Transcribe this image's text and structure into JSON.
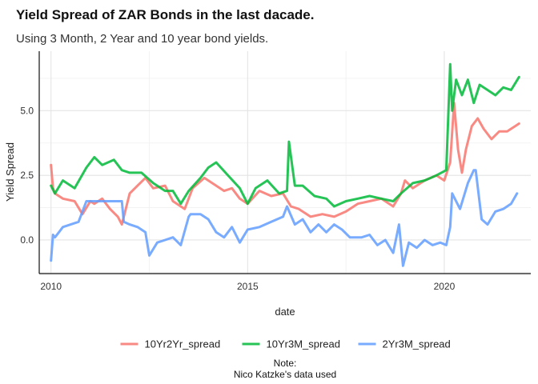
{
  "chart_data": {
    "type": "line",
    "title": "Yield Spread of ZAR Bonds in the last dacade.",
    "subtitle": "Using 3 Month, 2 Year and 10 year bond yields.",
    "xlabel": "date",
    "ylabel": "Yield Spread",
    "caption_line1": "Note:",
    "caption_line2": "Nico Katzke's data used",
    "xlim": [
      2009.7,
      2022.2
    ],
    "ylim": [
      -1.3,
      7.3
    ],
    "x_ticks": [
      2010,
      2015,
      2020
    ],
    "x_tick_labels": [
      "2010",
      "2015",
      "2020"
    ],
    "y_ticks": [
      0,
      2.5,
      5
    ],
    "y_tick_labels": [
      "0.0",
      "2.5",
      "5.0"
    ],
    "grid": true,
    "legend_position": "bottom",
    "series": [
      {
        "name": "10Yr2Yr_spread",
        "color": "#F8766D",
        "x": [
          2010.0,
          2010.05,
          2010.1,
          2010.3,
          2010.6,
          2010.8,
          2011.0,
          2011.1,
          2011.3,
          2011.5,
          2011.7,
          2011.8,
          2012.0,
          2012.2,
          2012.4,
          2012.6,
          2012.9,
          2013.1,
          2013.4,
          2013.6,
          2013.9,
          2014.1,
          2014.4,
          2014.6,
          2014.8,
          2015.0,
          2015.3,
          2015.6,
          2015.9,
          2016.1,
          2016.3,
          2016.6,
          2016.9,
          2017.2,
          2017.5,
          2017.8,
          2018.1,
          2018.4,
          2018.7,
          2018.9,
          2019.0,
          2019.2,
          2019.5,
          2019.8,
          2020.0,
          2020.15,
          2020.25,
          2020.35,
          2020.45,
          2020.55,
          2020.7,
          2020.85,
          2021.0,
          2021.2,
          2021.4,
          2021.6,
          2021.8,
          2021.9
        ],
        "y": [
          2.9,
          2.0,
          1.8,
          1.6,
          1.5,
          1.0,
          1.5,
          1.4,
          1.6,
          1.2,
          0.9,
          0.6,
          1.8,
          2.1,
          2.4,
          2.0,
          2.1,
          1.5,
          1.2,
          2.0,
          2.4,
          2.2,
          1.9,
          2.0,
          1.6,
          1.4,
          1.9,
          1.7,
          1.8,
          1.3,
          1.2,
          0.9,
          1.0,
          0.9,
          1.1,
          1.4,
          1.5,
          1.6,
          1.3,
          1.8,
          2.3,
          2.0,
          2.3,
          2.5,
          2.3,
          3.0,
          5.3,
          3.5,
          2.6,
          3.5,
          4.4,
          4.7,
          4.3,
          3.9,
          4.2,
          4.2,
          4.4,
          4.5
        ]
      },
      {
        "name": "10Yr3M_spread",
        "color": "#00BA38",
        "x": [
          2010.0,
          2010.1,
          2010.3,
          2010.6,
          2010.9,
          2011.1,
          2011.3,
          2011.6,
          2011.8,
          2012.0,
          2012.3,
          2012.6,
          2012.9,
          2013.1,
          2013.3,
          2013.5,
          2013.8,
          2014.0,
          2014.2,
          2014.5,
          2014.8,
          2015.0,
          2015.2,
          2015.5,
          2015.8,
          2016.0,
          2016.05,
          2016.2,
          2016.4,
          2016.7,
          2017.0,
          2017.2,
          2017.5,
          2017.8,
          2018.1,
          2018.4,
          2018.7,
          2018.9,
          2019.2,
          2019.5,
          2019.8,
          2020.05,
          2020.15,
          2020.2,
          2020.3,
          2020.45,
          2020.6,
          2020.75,
          2020.9,
          2021.1,
          2021.3,
          2021.5,
          2021.7,
          2021.9
        ],
        "y": [
          2.1,
          1.8,
          2.3,
          2.0,
          2.8,
          3.2,
          2.9,
          3.1,
          2.7,
          2.6,
          2.6,
          2.2,
          1.9,
          1.9,
          1.4,
          1.9,
          2.4,
          2.8,
          3.0,
          2.5,
          2.0,
          1.4,
          2.0,
          2.3,
          1.8,
          1.9,
          3.8,
          2.1,
          2.1,
          1.7,
          1.6,
          1.3,
          1.5,
          1.6,
          1.7,
          1.6,
          1.5,
          1.8,
          2.2,
          2.3,
          2.5,
          2.7,
          6.8,
          5.0,
          6.2,
          5.6,
          6.2,
          5.3,
          6.0,
          5.8,
          5.6,
          5.9,
          5.8,
          6.3
        ]
      },
      {
        "name": "2Yr3M_spread",
        "color": "#619CFF",
        "x": [
          2010.0,
          2010.05,
          2010.1,
          2010.2,
          2010.3,
          2010.5,
          2010.7,
          2010.9,
          2011.1,
          2011.3,
          2011.5,
          2011.8,
          2011.85,
          2012.0,
          2012.2,
          2012.4,
          2012.5,
          2012.7,
          2012.9,
          2013.1,
          2013.3,
          2013.5,
          2013.55,
          2013.8,
          2014.0,
          2014.2,
          2014.4,
          2014.6,
          2014.8,
          2015.0,
          2015.3,
          2015.6,
          2015.9,
          2016.0,
          2016.2,
          2016.4,
          2016.6,
          2016.8,
          2017.0,
          2017.2,
          2017.4,
          2017.6,
          2017.9,
          2018.1,
          2018.3,
          2018.5,
          2018.7,
          2018.85,
          2018.95,
          2019.1,
          2019.3,
          2019.5,
          2019.7,
          2019.9,
          2020.05,
          2020.15,
          2020.2,
          2020.4,
          2020.6,
          2020.75,
          2020.8,
          2020.95,
          2021.1,
          2021.3,
          2021.5,
          2021.7,
          2021.85
        ],
        "y": [
          -0.8,
          0.2,
          0.1,
          0.3,
          0.5,
          0.6,
          0.7,
          1.5,
          1.5,
          1.5,
          1.5,
          1.5,
          0.7,
          0.6,
          0.5,
          0.3,
          -0.6,
          -0.1,
          0.0,
          0.1,
          -0.2,
          0.9,
          1.0,
          1.0,
          0.8,
          0.3,
          0.1,
          0.5,
          -0.1,
          0.4,
          0.5,
          0.7,
          0.9,
          1.3,
          0.6,
          0.8,
          0.3,
          0.6,
          0.3,
          0.6,
          0.4,
          0.1,
          0.1,
          0.2,
          -0.2,
          0.0,
          -0.5,
          0.6,
          -1.0,
          -0.1,
          -0.3,
          0.0,
          -0.2,
          -0.1,
          -0.2,
          0.5,
          1.8,
          1.2,
          2.2,
          2.7,
          2.7,
          0.8,
          0.6,
          1.1,
          1.2,
          1.4,
          1.8
        ]
      }
    ]
  }
}
